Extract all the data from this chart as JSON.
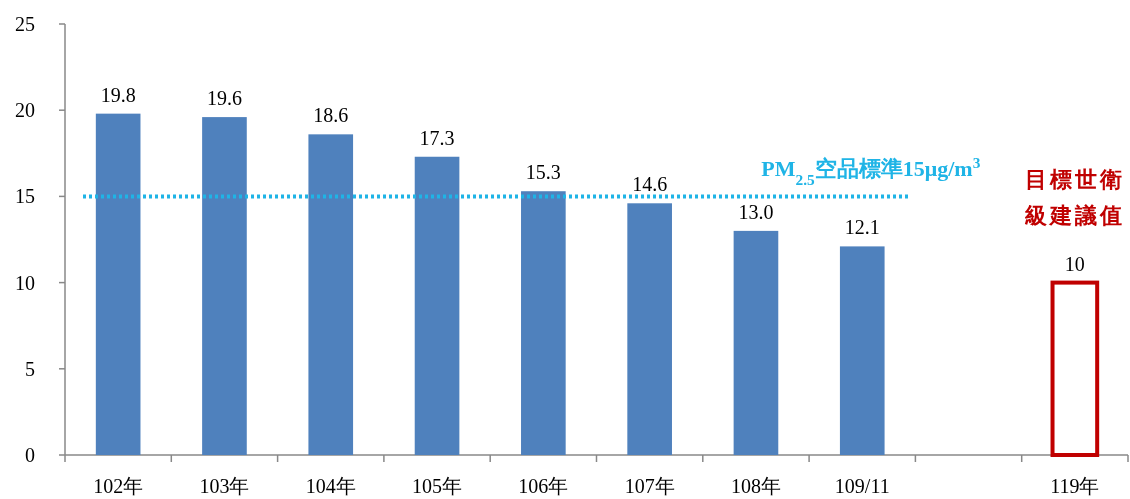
{
  "chart_data": {
    "type": "bar",
    "categories": [
      "102年",
      "103年",
      "104年",
      "105年",
      "106年",
      "107年",
      "108年",
      "109/11",
      null,
      "119年"
    ],
    "series": [
      {
        "color": "#4f81bd",
        "values": [
          19.8,
          19.6,
          18.6,
          17.3,
          15.3,
          14.6,
          13.0,
          12.1,
          null,
          null
        ],
        "value_labels": [
          "19.8",
          "19.6",
          "18.6",
          "17.3",
          "15.3",
          "14.6",
          "13.0",
          "12.1",
          null,
          null
        ]
      },
      {
        "color": "#c00000",
        "values": [
          null,
          null,
          null,
          null,
          null,
          null,
          null,
          null,
          null,
          10
        ],
        "value_labels": [
          null,
          null,
          null,
          null,
          null,
          null,
          null,
          null,
          null,
          "10"
        ]
      }
    ],
    "ylim": [
      0,
      25
    ],
    "yticks": [
      0,
      5,
      10,
      15,
      20,
      25
    ],
    "grid": false,
    "ref_lines": [
      {
        "axis": "y",
        "value": 15,
        "label": "PM$_{2.5}$空品標準15μg/m$^{3}$",
        "color": "#1fb4e6",
        "line_style": "dotted"
      }
    ],
    "annotations": [
      {
        "text": "目標世衛級建議值",
        "x": "119年",
        "y": 10
      }
    ]
  }
}
